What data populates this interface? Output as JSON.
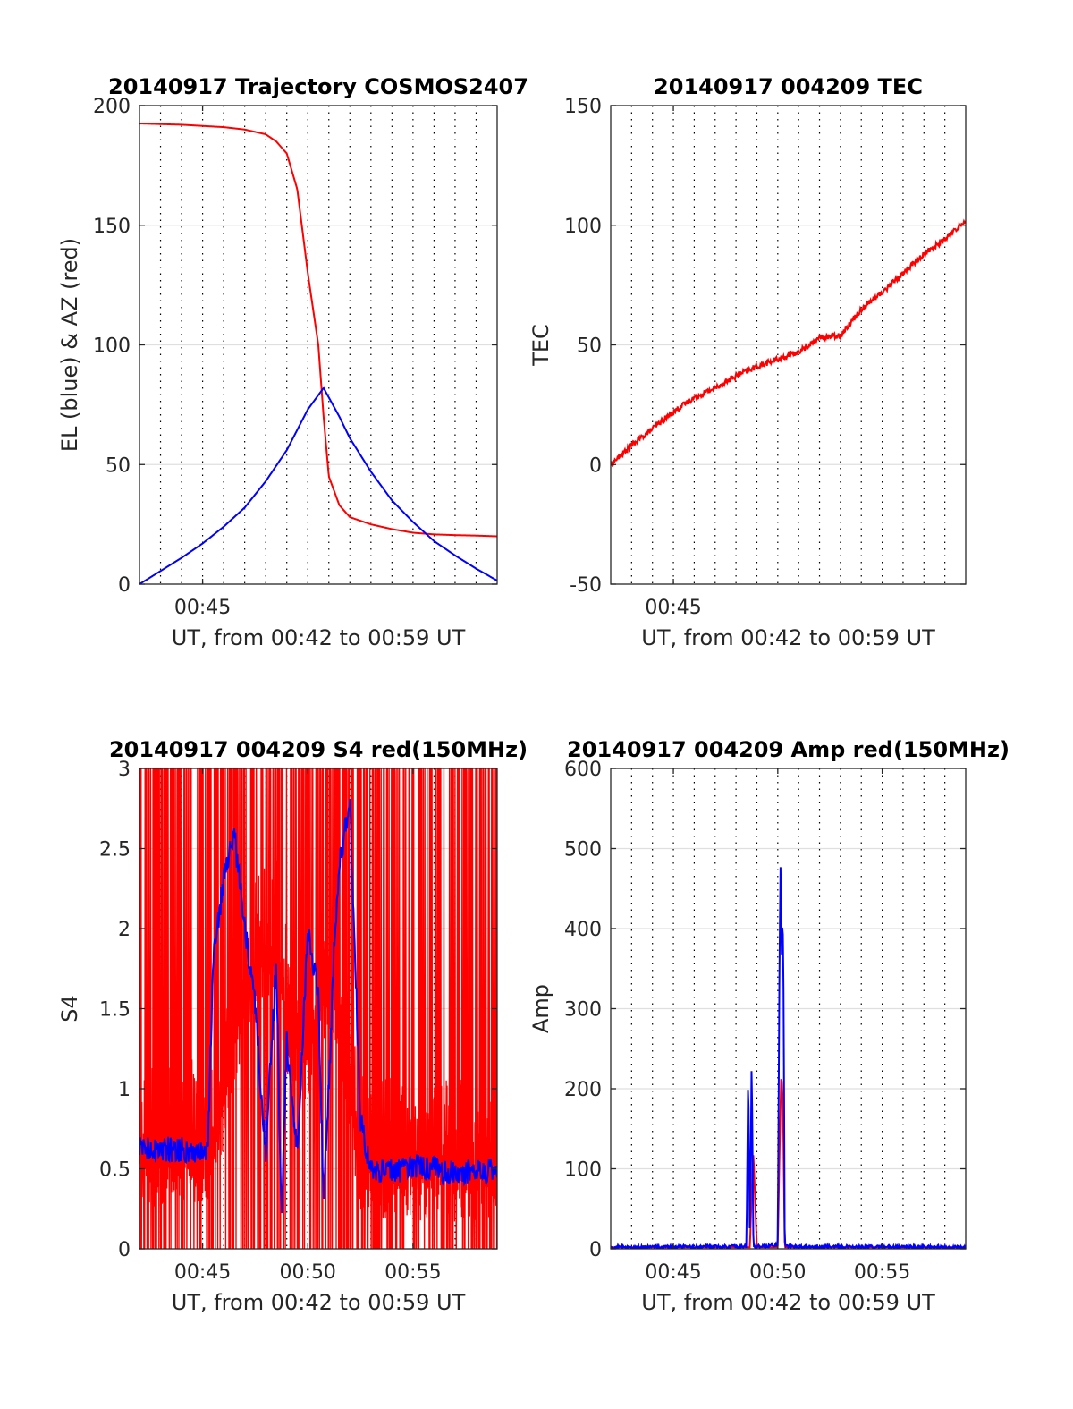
{
  "colors": {
    "red": "#ff0000",
    "blue": "#0000ff",
    "axis": "#262626",
    "grid": "#dfdfdf",
    "minorgrid": "#000000"
  },
  "chart_data": [
    {
      "type": "line",
      "title": "20140917 Trajectory COSMOS2407",
      "xlabel": "UT, from 00:42 to 00:59 UT",
      "ylabel": "EL (blue) & AZ (red)",
      "xlim": [
        "00:42",
        "00:59"
      ],
      "ylim": [
        0,
        200
      ],
      "yticks": [
        "0",
        "50",
        "100",
        "150",
        "200"
      ],
      "xticks": [
        {
          "t": "00:45",
          "label": "00:45"
        }
      ],
      "minor_grid_minutes": [
        43,
        44,
        45,
        46,
        47,
        48,
        49,
        50,
        51,
        52,
        53,
        54,
        55,
        56,
        57,
        58
      ],
      "grid": true,
      "series": [
        {
          "color": "red",
          "x": [
            "00:42",
            "00:44",
            "00:46",
            "00:47",
            "00:48",
            "00:48:30",
            "00:49",
            "00:49:30",
            "00:50",
            "00:50:30",
            "00:50:45",
            "00:51",
            "00:51:30",
            "00:52",
            "00:53",
            "00:54",
            "00:55",
            "00:56",
            "00:57",
            "00:58",
            "00:59"
          ],
          "y": [
            192.5,
            192,
            191,
            190,
            188,
            185,
            180,
            165,
            130,
            100,
            70,
            45,
            33,
            28,
            25,
            23,
            21.5,
            20.8,
            20.5,
            20.3,
            20
          ]
        },
        {
          "color": "blue",
          "x": [
            "00:42",
            "00:43",
            "00:44",
            "00:45",
            "00:46",
            "00:47",
            "00:48",
            "00:49",
            "00:50",
            "00:50:45",
            "00:51:30",
            "00:52",
            "00:53",
            "00:54",
            "00:55",
            "00:56",
            "00:57",
            "00:58",
            "00:59"
          ],
          "y": [
            0,
            5.5,
            11,
            17,
            24,
            32,
            43,
            56,
            73,
            82,
            70,
            61,
            47,
            35,
            26,
            18,
            12,
            6.5,
            1.5
          ]
        }
      ]
    },
    {
      "type": "line",
      "title": "20140917 004209 TEC",
      "xlabel": "UT, from 00:42 to 00:59 UT",
      "ylabel": "TEC",
      "xlim": [
        "00:42",
        "00:59"
      ],
      "ylim": [
        -50,
        150
      ],
      "yticks": [
        "-50",
        "0",
        "50",
        "100",
        "150"
      ],
      "xticks": [
        {
          "t": "00:45",
          "label": "00:45"
        }
      ],
      "minor_grid_minutes": [
        43,
        44,
        45,
        46,
        47,
        48,
        49,
        50,
        51,
        52,
        53,
        54,
        55,
        56,
        57,
        58
      ],
      "grid": true,
      "series": [
        {
          "color": "red",
          "noise": 1.2,
          "x": [
            "00:42",
            "00:43",
            "00:44",
            "00:45",
            "00:46",
            "00:47",
            "00:48",
            "00:49",
            "00:50",
            "00:51",
            "00:52",
            "00:53",
            "00:54",
            "00:55",
            "00:56",
            "00:57",
            "00:58",
            "00:59"
          ],
          "y": [
            0,
            8,
            15,
            22,
            28,
            32,
            37,
            41,
            44,
            47,
            53,
            54,
            65,
            72,
            80,
            88,
            94,
            102
          ]
        }
      ]
    },
    {
      "type": "line",
      "title": "20140917 004209 S4 red(150MHz)",
      "xlabel": "UT, from 00:42 to 00:59 UT",
      "ylabel": "S4",
      "xlim": [
        "00:42",
        "00:59"
      ],
      "ylim": [
        0,
        3
      ],
      "yticks": [
        "0",
        "0.5",
        "1",
        "1.5",
        "2",
        "2.5",
        "3"
      ],
      "xticks": [
        {
          "t": "00:45",
          "label": "00:45"
        },
        {
          "t": "00:50",
          "label": "00:50"
        },
        {
          "t": "00:55",
          "label": "00:55"
        }
      ],
      "minor_grid_minutes": [
        43,
        44,
        45,
        46,
        47,
        48,
        49,
        50,
        51,
        52,
        53,
        54,
        55,
        56,
        57,
        58
      ],
      "grid": true,
      "series": [
        {
          "color": "red",
          "style": "dense",
          "x": [
            "00:42",
            "00:45:30",
            "00:47",
            "00:48:30",
            "00:49",
            "00:50",
            "00:51",
            "00:52",
            "00:52:30",
            "00:59"
          ],
          "y": [
            0.55,
            0.6,
            1.6,
            1.9,
            1.4,
            1.2,
            1.7,
            1.0,
            0.5,
            0.45
          ]
        },
        {
          "color": "blue",
          "x": [
            "00:42",
            "00:45:15",
            "00:45:30",
            "00:46",
            "00:46:30",
            "00:47",
            "00:47:30",
            "00:48",
            "00:48:30",
            "00:48:45",
            "00:49",
            "00:49:30",
            "00:50",
            "00:50:30",
            "00:50:45",
            "00:51",
            "00:51:15",
            "00:51:30",
            "00:52",
            "00:52:30",
            "00:53",
            "00:54",
            "00:55",
            "00:56",
            "00:57",
            "00:58",
            "00:59"
          ],
          "y": [
            0.62,
            0.62,
            1.8,
            2.3,
            2.6,
            2.0,
            1.5,
            0.6,
            1.8,
            0.2,
            1.3,
            0.6,
            2.0,
            1.6,
            0.3,
            1.0,
            1.9,
            2.4,
            2.8,
            0.8,
            0.5,
            0.48,
            0.52,
            0.5,
            0.47,
            0.5,
            0.48
          ]
        }
      ]
    },
    {
      "type": "line",
      "title": "20140917 004209 Amp red(150MHz)",
      "xlabel": "UT, from 00:42 to 00:59 UT",
      "ylabel": "Amp",
      "xlim": [
        "00:42",
        "00:59"
      ],
      "ylim": [
        0,
        600
      ],
      "yticks": [
        "0",
        "100",
        "200",
        "300",
        "400",
        "500",
        "600"
      ],
      "xticks": [
        {
          "t": "00:45",
          "label": "00:45"
        },
        {
          "t": "00:50",
          "label": "00:50"
        },
        {
          "t": "00:55",
          "label": "00:55"
        }
      ],
      "minor_grid_minutes": [
        43,
        44,
        45,
        46,
        47,
        48,
        49,
        50,
        51,
        52,
        53,
        54,
        55,
        56,
        57,
        58
      ],
      "grid": true,
      "series": [
        {
          "color": "red",
          "x": [
            "00:42",
            "00:48:40",
            "00:48:45",
            "00:48:50",
            "00:48:55",
            "00:49:00",
            "00:50:00",
            "00:50:05",
            "00:50:10",
            "00:50:15",
            "00:50:20",
            "00:59"
          ],
          "y": [
            2,
            2,
            70,
            120,
            60,
            2,
            2,
            120,
            220,
            180,
            2,
            2
          ]
        },
        {
          "color": "blue",
          "noise": 2,
          "x": [
            "00:42",
            "00:48:30",
            "00:48:35",
            "00:48:40",
            "00:48:45",
            "00:48:50",
            "00:48:55",
            "00:49:00",
            "00:50:00",
            "00:50:05",
            "00:50:08",
            "00:50:11",
            "00:50:14",
            "00:50:17",
            "00:50:20",
            "00:50:25",
            "00:59"
          ],
          "y": [
            2,
            3,
            225,
            5,
            240,
            3,
            3,
            3,
            5,
            365,
            480,
            360,
            420,
            300,
            5,
            3,
            2
          ]
        }
      ]
    }
  ]
}
